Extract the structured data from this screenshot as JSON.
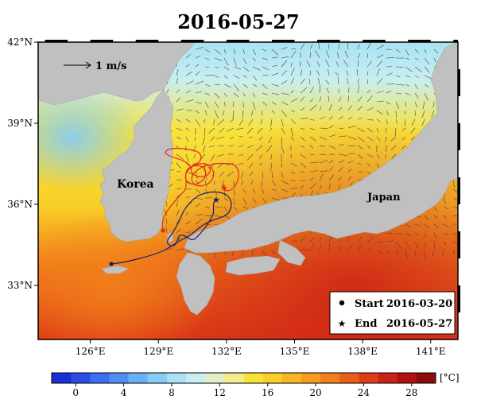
{
  "title": "2016-05-27",
  "map": {
    "lon_range": [
      123.7,
      142.2
    ],
    "lat_range": [
      31.0,
      42.0
    ],
    "lat_ticks": [
      {
        "value": 42,
        "label": "42°N"
      },
      {
        "value": 39,
        "label": "39°N"
      },
      {
        "value": 36,
        "label": "36°N"
      },
      {
        "value": 33,
        "label": "33°N"
      }
    ],
    "lon_ticks": [
      {
        "value": 126,
        "label": "126°E"
      },
      {
        "value": 129,
        "label": "129°E"
      },
      {
        "value": 132,
        "label": "132°E"
      },
      {
        "value": 135,
        "label": "135°E"
      },
      {
        "value": 138,
        "label": "138°E"
      },
      {
        "value": 141,
        "label": "141°E"
      }
    ],
    "land_color": "#c0c0c0",
    "labels": {
      "korea": "Korea",
      "japan": "Japan"
    },
    "vector_scale_label": "1 m/s"
  },
  "tracks": {
    "red_track_color": "#e8281e",
    "blue_track_color": "#1a1f6e",
    "red_start": [
      129.2,
      35.1
    ],
    "red_end": [
      131.9,
      36.7
    ],
    "blue_start": [
      127.1,
      33.85
    ],
    "blue_end": [
      131.5,
      36.2
    ]
  },
  "legend": {
    "start_label": "Start",
    "start_date": "2016-03-20",
    "end_label": "End",
    "end_date": "2016-05-27"
  },
  "colorbar": {
    "unit": "[°C]",
    "ticks": [
      "0",
      "4",
      "8",
      "12",
      "16",
      "20",
      "24",
      "28"
    ],
    "min": -2,
    "max": 30,
    "colors": [
      "#1a2fd8",
      "#2b4de6",
      "#3b6ef0",
      "#4f8ff5",
      "#68b0f7",
      "#86cdf5",
      "#a8e2f3",
      "#c9eef0",
      "#e2f0c8",
      "#f3ec8a",
      "#f8e23a",
      "#f9cf28",
      "#f8b722",
      "#f69c1e",
      "#f17f1a",
      "#ea5f18",
      "#df3d17",
      "#cc2216",
      "#b01212",
      "#8f0b0b"
    ]
  }
}
